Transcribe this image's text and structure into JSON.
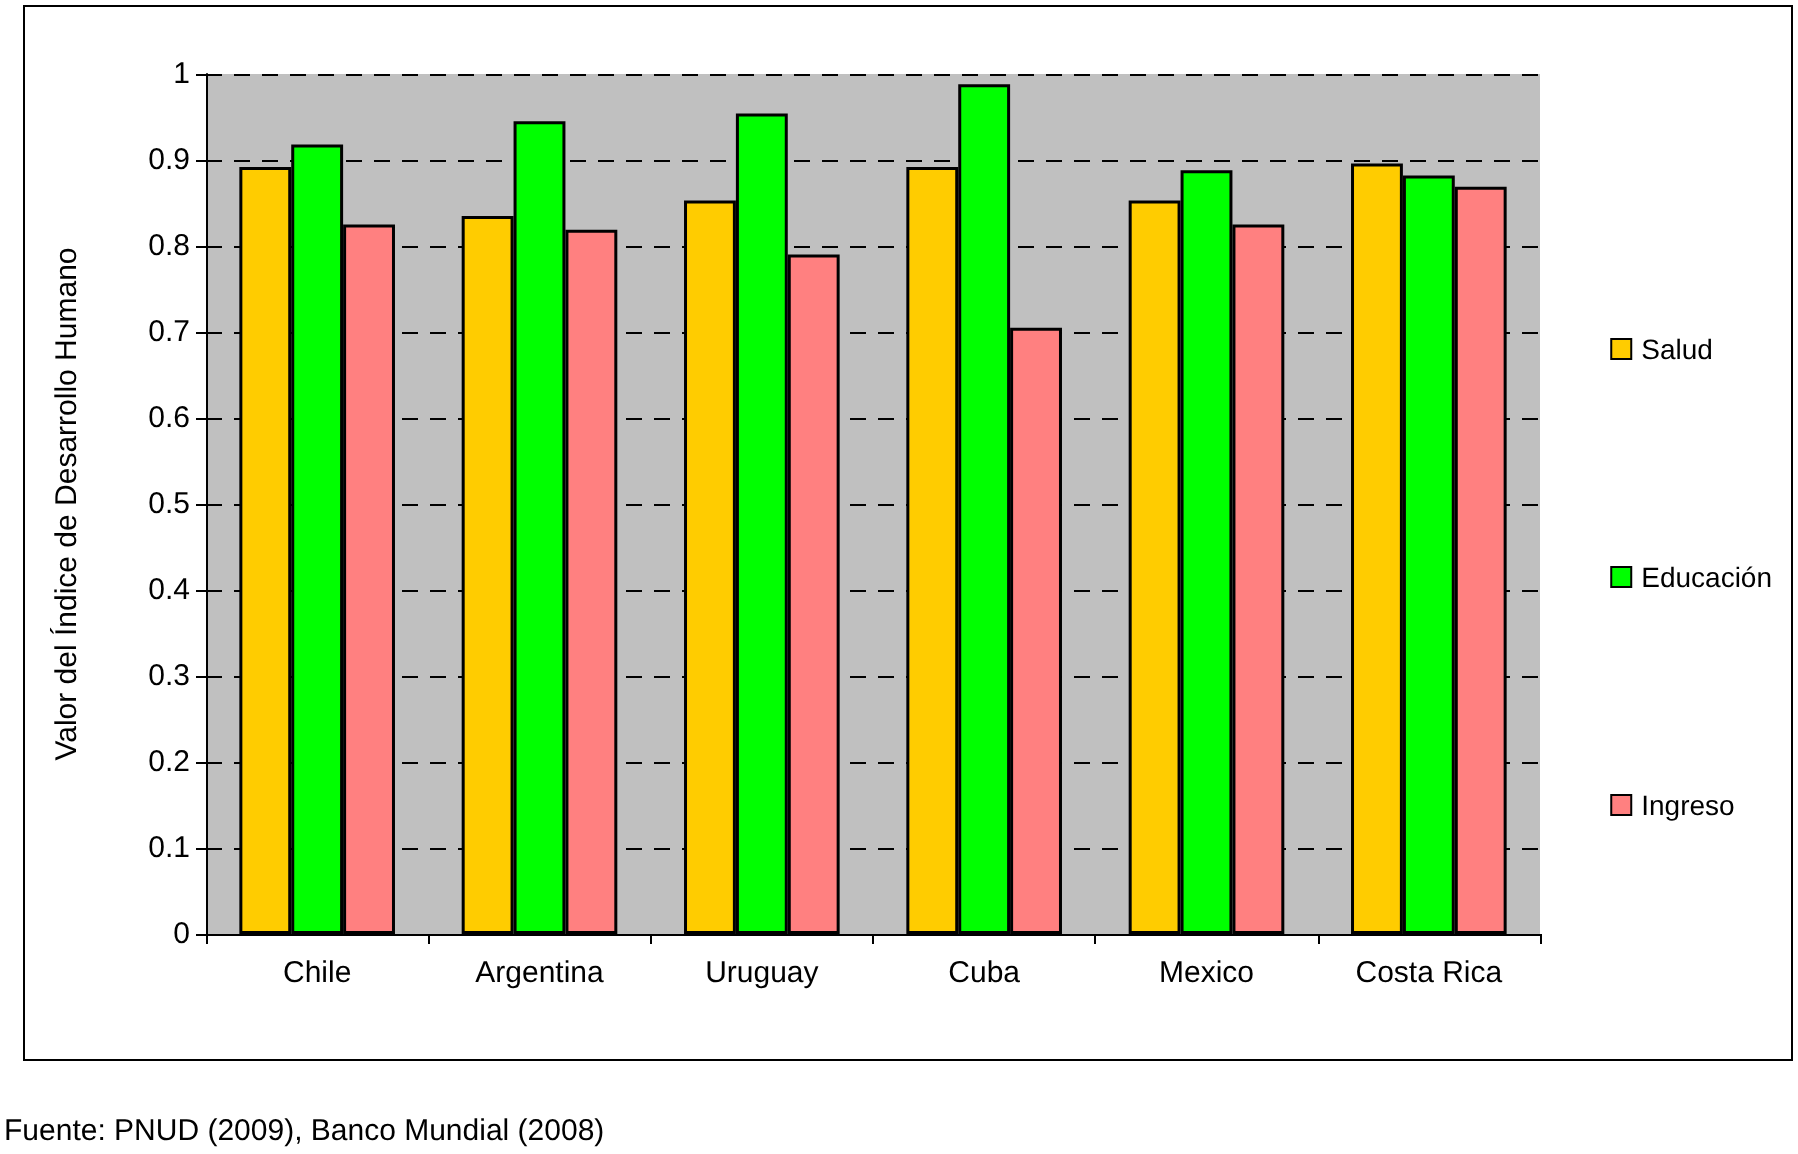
{
  "chart_data": {
    "type": "bar",
    "ylabel": "Valor del Índice de Desarrollo Humano",
    "categories": [
      "Chile",
      "Argentina",
      "Uruguay",
      "Cuba",
      "Mexico",
      "Costa Rica"
    ],
    "series": [
      {
        "name": "Salud",
        "color": "#ffcc00",
        "values": [
          0.892,
          0.835,
          0.853,
          0.892,
          0.853,
          0.896
        ]
      },
      {
        "name": "Educación",
        "color": "#00ff00",
        "values": [
          0.918,
          0.945,
          0.954,
          0.988,
          0.888,
          0.882
        ]
      },
      {
        "name": "Ingreso",
        "color": "#ff8080",
        "values": [
          0.825,
          0.819,
          0.79,
          0.705,
          0.825,
          0.869
        ]
      }
    ],
    "ylim": [
      0,
      1
    ],
    "yticks": [
      0,
      0.1,
      0.2,
      0.3,
      0.4,
      0.5,
      0.6,
      0.7,
      0.8,
      0.9,
      1
    ],
    "grid": "y",
    "legend": "right",
    "annotations": [
      "Fuente: PNUD (2009), Banco Mundial (2008)"
    ]
  }
}
